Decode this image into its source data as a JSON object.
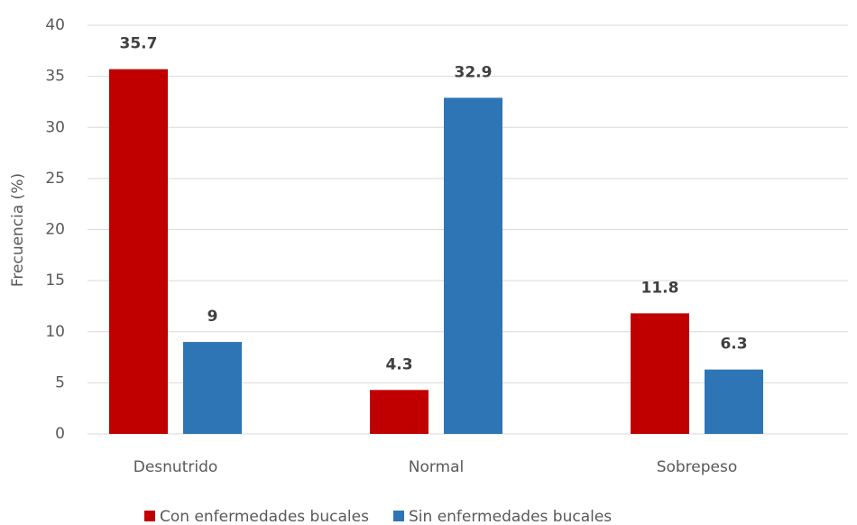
{
  "chart_data": {
    "type": "bar",
    "y_label": "Frecuencia (%)",
    "categories": [
      "Desnutrido",
      "Normal",
      "Sobrepeso"
    ],
    "series": [
      {
        "name": "Con enfermedades bucales",
        "color": "#c00000",
        "values": [
          35.7,
          4.3,
          11.8
        ]
      },
      {
        "name": "Sin enfermedades bucales",
        "color": "#2e75b6",
        "values": [
          9,
          32.9,
          6.3
        ]
      }
    ],
    "ylim": [
      0,
      40
    ],
    "yticks": [
      0,
      5,
      10,
      15,
      20,
      25,
      30,
      35,
      40
    ],
    "grid": true,
    "legend": "bottom"
  }
}
